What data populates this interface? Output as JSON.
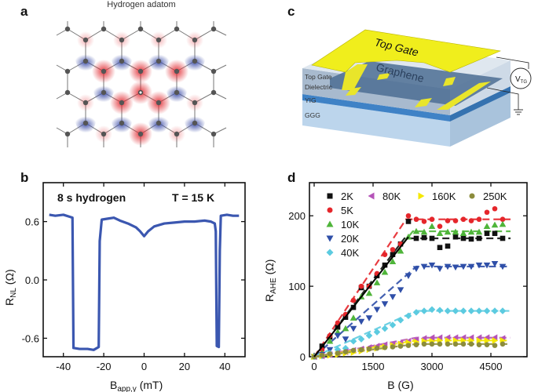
{
  "panel_labels": {
    "a": "a",
    "b": "b",
    "c": "c",
    "d": "d"
  },
  "panel_a": {
    "title": "Hydrogen adatom",
    "colors": {
      "spin_up": "#e0242b",
      "spin_down": "#3a4ba8",
      "atom": "#555555",
      "bond": "#777777"
    }
  },
  "panel_c": {
    "top_gate": "Top Gate",
    "graphene": "Graphene",
    "layer_labels": [
      "Top Gate",
      "Dielectric",
      "YIG",
      "GGG"
    ],
    "voltage_main": "V",
    "voltage_sub": "TG",
    "colors": {
      "gate": "#f0ee1c",
      "dielectric": "#9fb2c9",
      "yig": "#3f82c6",
      "ggg": "#bcd5ec"
    }
  },
  "chart_data": [
    {
      "type": "line",
      "annotation_left": "8 s hydrogen",
      "annotation_right": "T = 15 K",
      "xlabel_main": "B",
      "xlabel_sub": "app,y",
      "xlabel_unit": " (mT)",
      "ylabel_main": "R",
      "ylabel_sub": "NL",
      "ylabel_unit": " (Ω)",
      "xlim": [
        -50,
        50
      ],
      "ylim": [
        -0.79,
        1.0
      ],
      "xticks": [
        -40,
        -20,
        0,
        20,
        40
      ],
      "xtick_labels": [
        "-40",
        "-20",
        "0",
        "20",
        "40"
      ],
      "yticks": [
        -0.6,
        0.0,
        0.6
      ],
      "ytick_labels": [
        "-0.6",
        "0.0",
        "0.6"
      ],
      "color": "#3b57b0",
      "points": [
        [
          -47,
          0.67
        ],
        [
          -44,
          0.66
        ],
        [
          -40,
          0.67
        ],
        [
          -37,
          0.65
        ],
        [
          -35.5,
          0.64
        ],
        [
          -35,
          -0.7
        ],
        [
          -32,
          -0.71
        ],
        [
          -28,
          -0.71
        ],
        [
          -25,
          -0.72
        ],
        [
          -22.5,
          -0.69
        ],
        [
          -22,
          0.4
        ],
        [
          -21,
          0.62
        ],
        [
          -18,
          0.63
        ],
        [
          -15,
          0.64
        ],
        [
          -12,
          0.61
        ],
        [
          -8,
          0.58
        ],
        [
          -4,
          0.54
        ],
        [
          -2,
          0.5
        ],
        [
          0,
          0.45
        ],
        [
          2,
          0.5
        ],
        [
          5,
          0.55
        ],
        [
          10,
          0.58
        ],
        [
          15,
          0.59
        ],
        [
          20,
          0.6
        ],
        [
          25,
          0.6
        ],
        [
          30,
          0.61
        ],
        [
          33,
          0.6
        ],
        [
          35,
          0.58
        ],
        [
          35.5,
          0.5
        ],
        [
          36,
          -0.68
        ],
        [
          37,
          -0.69
        ],
        [
          37.5,
          0.3
        ],
        [
          38,
          0.66
        ],
        [
          41,
          0.67
        ],
        [
          44,
          0.66
        ],
        [
          47,
          0.66
        ]
      ]
    },
    {
      "type": "scatter",
      "xlabel": "B (G)",
      "ylabel_main": "R",
      "ylabel_sub": "AHE",
      "ylabel_unit": " (Ω)",
      "xlim": [
        -120,
        5420
      ],
      "ylim": [
        0,
        247
      ],
      "xticks": [
        0,
        1500,
        3000,
        4500
      ],
      "xtick_labels": [
        "0",
        "1500",
        "3000",
        "4500"
      ],
      "yticks": [
        0,
        100,
        200
      ],
      "ytick_labels": [
        "0",
        "100",
        "200"
      ],
      "x": [
        0,
        200,
        400,
        600,
        800,
        1000,
        1200,
        1400,
        1600,
        1800,
        2000,
        2200,
        2400,
        2600,
        2800,
        3000,
        3200,
        3400,
        3600,
        3800,
        4000,
        4200,
        4400,
        4600,
        4800
      ],
      "series": [
        {
          "name": "2K",
          "color": "#111111",
          "marker": "square",
          "values": [
            0,
            15,
            28,
            42,
            56,
            70,
            98,
            100,
            115,
            130,
            145,
            160,
            192,
            168,
            169,
            168,
            155,
            157,
            170,
            168,
            167,
            168,
            175,
            175,
            168
          ],
          "fit": [
            0,
            168
          ]
        },
        {
          "name": "5K",
          "color": "#e5262b",
          "marker": "circle",
          "values": [
            0,
            10,
            30,
            48,
            60,
            80,
            100,
            100,
            118,
            145,
            152,
            160,
            200,
            195,
            192,
            195,
            185,
            193,
            193,
            195,
            193,
            195,
            205,
            210,
            195
          ],
          "fit": [
            0,
            195
          ]
        },
        {
          "name": "10K",
          "color": "#4fb53a",
          "marker": "triangle-up",
          "values": [
            0,
            5,
            22,
            35,
            40,
            55,
            85,
            90,
            105,
            120,
            135,
            150,
            170,
            178,
            177,
            185,
            175,
            177,
            177,
            175,
            177,
            177,
            185,
            187,
            188
          ],
          "fit": [
            0,
            178
          ]
        },
        {
          "name": "20K",
          "color": "#2f4fa8",
          "marker": "triangle-down",
          "values": [
            0,
            3,
            10,
            30,
            25,
            40,
            50,
            55,
            67,
            75,
            85,
            95,
            115,
            125,
            128,
            130,
            125,
            128,
            127,
            128,
            128,
            130,
            130,
            132,
            128
          ],
          "fit": [
            0,
            128
          ]
        },
        {
          "name": "40K",
          "color": "#5ccbe0",
          "marker": "diamond",
          "values": [
            0,
            1,
            5,
            10,
            12,
            22,
            25,
            30,
            35,
            40,
            45,
            52,
            58,
            63,
            65,
            67,
            66,
            65,
            65,
            65,
            65,
            65,
            65,
            65,
            65
          ],
          "fit": [
            0,
            65
          ]
        },
        {
          "name": "80K",
          "color": "#b553b8",
          "marker": "triangle-left",
          "values": [
            0,
            1,
            3,
            5,
            7,
            9,
            11,
            13,
            15,
            17,
            18,
            20,
            22,
            24,
            26,
            27,
            27,
            27,
            27,
            27,
            27,
            27,
            27,
            27,
            26
          ],
          "fit": [
            0,
            27
          ]
        },
        {
          "name": "160K",
          "color": "#f5e800",
          "marker": "triangle-right",
          "values": [
            0,
            1,
            2,
            3,
            5,
            6,
            8,
            10,
            12,
            14,
            16,
            18,
            20,
            21,
            22,
            22,
            23,
            23,
            23,
            23,
            23,
            23,
            23,
            23,
            23
          ],
          "fit": [
            0,
            23
          ]
        },
        {
          "name": "250K",
          "color": "#8c8c3c",
          "marker": "circle",
          "values": [
            0,
            2,
            4,
            5,
            7,
            9,
            10,
            11,
            12,
            13,
            14,
            15,
            16,
            17,
            18,
            18,
            18,
            18,
            18,
            18,
            18,
            17,
            17,
            16,
            18
          ],
          "fit": [
            0,
            18
          ]
        }
      ],
      "linear_fit": {
        "color": "#000000",
        "from": [
          0,
          0
        ],
        "to": [
          2400,
          170
        ]
      },
      "legend_placement": "top"
    }
  ]
}
